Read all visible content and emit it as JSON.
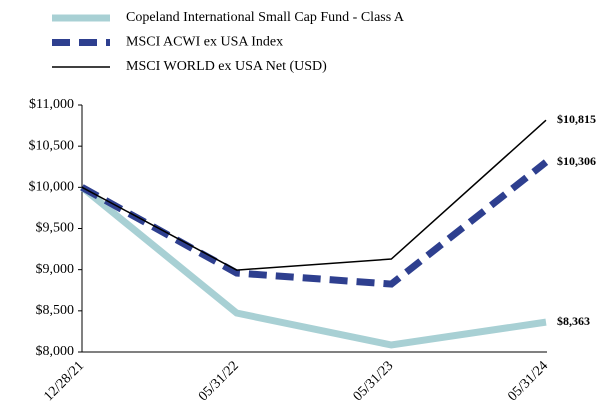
{
  "chart_data": {
    "type": "line",
    "categories": [
      "12/28/21",
      "05/31/22",
      "05/31/23",
      "05/31/24"
    ],
    "series": [
      {
        "name": "Copeland International Small Cap Fund - Class A",
        "color": "#a8d0d4",
        "style": "solid-thick",
        "values": [
          10000,
          8473,
          8085,
          8363
        ],
        "value_labels": [
          null,
          null,
          null,
          "$8,363"
        ]
      },
      {
        "name": "MSCI ACWI ex USA Index",
        "color": "#2e3f8f",
        "style": "dashed",
        "values": [
          10000,
          8959,
          8825,
          10306
        ],
        "value_labels": [
          null,
          null,
          null,
          "$10,306"
        ]
      },
      {
        "name": "MSCI WORLD ex USA Net (USD)",
        "color": "#000000",
        "style": "thin",
        "values": [
          10000,
          8995,
          9129,
          10815
        ],
        "value_labels": [
          null,
          null,
          null,
          "$10,815"
        ]
      }
    ],
    "ylim": [
      8000,
      11000
    ],
    "yticks": [
      {
        "value": 8000,
        "label": "$8,000"
      },
      {
        "value": 8500,
        "label": "$8,500"
      },
      {
        "value": 9000,
        "label": "$9,000"
      },
      {
        "value": 9500,
        "label": "$9,500"
      },
      {
        "value": 10000,
        "label": "$10,000"
      },
      {
        "value": 10500,
        "label": "$10,500"
      },
      {
        "value": 11000,
        "label": "$11,000"
      }
    ],
    "grid": false,
    "legend": "top"
  }
}
